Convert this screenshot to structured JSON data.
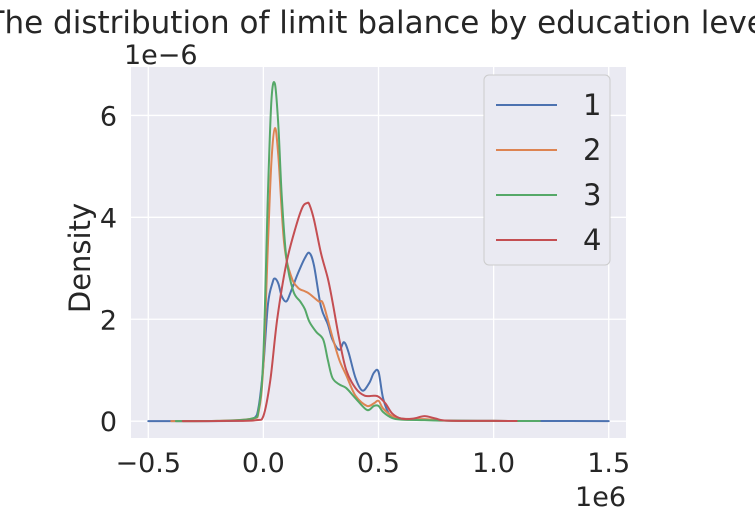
{
  "chart_data": {
    "type": "line",
    "title": "The distribution of limit balance by education level",
    "xlabel": "",
    "ylabel": "Density",
    "x_offset_label": "1e6",
    "y_offset_label": "1e−6",
    "xlim": [
      -0.575,
      1.575
    ],
    "ylim": [
      -0.33,
      6.95
    ],
    "xticks": [
      -0.5,
      0.0,
      0.5,
      1.0,
      1.5
    ],
    "xtick_labels": [
      "−0.5",
      "0.0",
      "0.5",
      "1.0",
      "1.5"
    ],
    "yticks": [
      0,
      2,
      4,
      6
    ],
    "ytick_labels": [
      "0",
      "2",
      "4",
      "6"
    ],
    "grid": true,
    "legend_position": "upper right",
    "series": [
      {
        "name": "1",
        "color": "#4c72b0",
        "x": [
          -0.5,
          -0.3,
          -0.1,
          -0.04,
          -0.02,
          0.0,
          0.02,
          0.04,
          0.05,
          0.065,
          0.08,
          0.1,
          0.12,
          0.15,
          0.18,
          0.2,
          0.22,
          0.25,
          0.28,
          0.3,
          0.33,
          0.35,
          0.37,
          0.4,
          0.43,
          0.46,
          0.48,
          0.5,
          0.52,
          0.55,
          0.6,
          0.7,
          0.8,
          1.0,
          1.2,
          1.5
        ],
        "y": [
          0,
          0,
          0.01,
          0.06,
          0.3,
          1.1,
          2.3,
          2.72,
          2.8,
          2.7,
          2.45,
          2.35,
          2.55,
          2.9,
          3.2,
          3.3,
          3.05,
          2.25,
          1.9,
          1.6,
          1.4,
          1.55,
          1.35,
          0.85,
          0.6,
          0.75,
          0.95,
          0.97,
          0.45,
          0.12,
          0.05,
          0.03,
          0.01,
          0.005,
          0.003,
          0.002
        ]
      },
      {
        "name": "2",
        "color": "#dd8452",
        "x": [
          -0.4,
          -0.2,
          -0.05,
          -0.02,
          0.0,
          0.02,
          0.035,
          0.05,
          0.065,
          0.09,
          0.12,
          0.15,
          0.18,
          0.2,
          0.24,
          0.26,
          0.3,
          0.33,
          0.36,
          0.4,
          0.45,
          0.48,
          0.5,
          0.52,
          0.56,
          0.6,
          0.7,
          0.8,
          1.0,
          1.2
        ],
        "y": [
          0,
          0.005,
          0.05,
          0.2,
          1.1,
          3.5,
          5.1,
          5.75,
          5.2,
          3.5,
          2.85,
          2.62,
          2.55,
          2.5,
          2.35,
          2.3,
          1.65,
          1.2,
          0.9,
          0.5,
          0.3,
          0.35,
          0.4,
          0.25,
          0.1,
          0.05,
          0.04,
          0.01,
          0.005,
          0.003
        ]
      },
      {
        "name": "3",
        "color": "#55a868",
        "x": [
          -0.38,
          -0.2,
          -0.05,
          -0.02,
          0.0,
          0.02,
          0.035,
          0.05,
          0.065,
          0.08,
          0.1,
          0.13,
          0.16,
          0.18,
          0.2,
          0.23,
          0.26,
          0.28,
          0.3,
          0.33,
          0.36,
          0.4,
          0.45,
          0.48,
          0.5,
          0.52,
          0.56,
          0.6,
          0.7,
          0.8,
          1.0,
          1.2
        ],
        "y": [
          0,
          0.005,
          0.05,
          0.25,
          1.3,
          4.5,
          6.3,
          6.62,
          5.8,
          4.4,
          3.2,
          2.55,
          2.35,
          2.2,
          1.95,
          1.75,
          1.6,
          1.2,
          0.85,
          0.72,
          0.65,
          0.45,
          0.22,
          0.3,
          0.3,
          0.18,
          0.06,
          0.03,
          0.02,
          0.01,
          0.005,
          0.003
        ]
      },
      {
        "name": "4",
        "color": "#c44e52",
        "x": [
          -0.35,
          -0.15,
          -0.03,
          0.0,
          0.03,
          0.06,
          0.1,
          0.14,
          0.17,
          0.19,
          0.2,
          0.22,
          0.25,
          0.28,
          0.3,
          0.33,
          0.36,
          0.4,
          0.44,
          0.48,
          0.5,
          0.53,
          0.56,
          0.6,
          0.65,
          0.7,
          0.75,
          0.8,
          1.0,
          1.1
        ],
        "y": [
          0,
          0.005,
          0.02,
          0.1,
          0.8,
          2.0,
          3.1,
          3.8,
          4.2,
          4.28,
          4.25,
          3.95,
          3.3,
          2.8,
          2.35,
          1.6,
          1.0,
          0.65,
          0.5,
          0.5,
          0.48,
          0.35,
          0.15,
          0.05,
          0.05,
          0.1,
          0.05,
          0.01,
          0.005,
          0.003
        ]
      }
    ]
  }
}
